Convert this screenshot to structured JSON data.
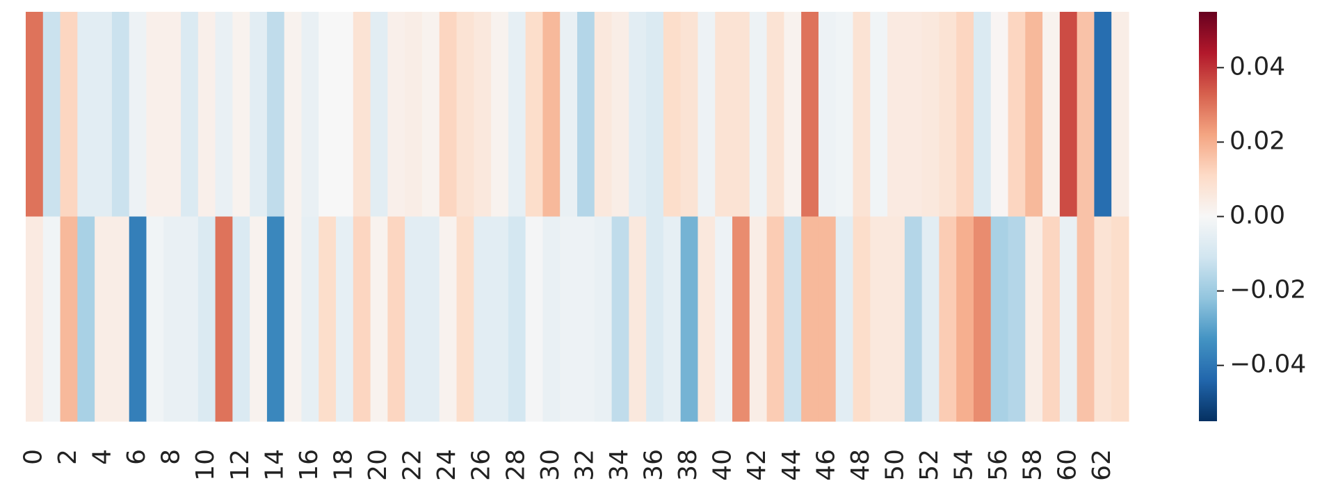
{
  "chart_data": {
    "type": "heatmap",
    "categories": [
      "0",
      null,
      "2",
      null,
      "4",
      null,
      "6",
      null,
      "8",
      null,
      "10",
      null,
      "12",
      null,
      "14",
      null,
      "16",
      null,
      "18",
      null,
      "20",
      null,
      "22",
      null,
      "24",
      null,
      "26",
      null,
      "28",
      null,
      "30",
      null,
      "32",
      null,
      "34",
      null,
      "36",
      null,
      "38",
      null,
      "40",
      null,
      "42",
      null,
      "44",
      null,
      "46",
      null,
      "48",
      null,
      "50",
      null,
      "52",
      null,
      "54",
      null,
      "56",
      null,
      "58",
      null,
      "60",
      null,
      "62",
      null
    ],
    "values": [
      [
        0.03,
        -0.012,
        0.012,
        -0.006,
        -0.006,
        -0.012,
        -0.003,
        0.003,
        0.003,
        -0.008,
        0.003,
        -0.004,
        0.002,
        -0.006,
        -0.014,
        0.002,
        -0.004,
        0.0,
        0.0,
        0.008,
        -0.006,
        0.003,
        0.004,
        0.002,
        0.012,
        0.008,
        0.006,
        0.002,
        -0.005,
        0.01,
        0.018,
        -0.004,
        -0.016,
        0.006,
        0.004,
        -0.006,
        -0.008,
        0.01,
        0.008,
        -0.003,
        0.008,
        0.008,
        -0.003,
        0.008,
        0.002,
        0.03,
        -0.003,
        -0.002,
        0.008,
        -0.002,
        0.005,
        0.005,
        0.006,
        0.008,
        0.012,
        -0.008,
        0.001,
        0.012,
        0.018,
        0.002,
        0.036,
        0.016,
        -0.042,
        0.004
      ],
      [
        0.005,
        -0.002,
        0.018,
        -0.018,
        0.004,
        0.004,
        -0.038,
        -0.002,
        -0.004,
        -0.004,
        -0.008,
        0.03,
        -0.008,
        0.002,
        -0.036,
        0.002,
        -0.005,
        0.01,
        -0.005,
        0.012,
        0.002,
        0.012,
        -0.006,
        -0.006,
        0.002,
        0.01,
        -0.006,
        -0.006,
        -0.01,
        -0.001,
        -0.004,
        -0.003,
        -0.003,
        -0.004,
        -0.014,
        0.006,
        -0.008,
        -0.005,
        -0.026,
        0.006,
        -0.003,
        0.026,
        0.004,
        0.014,
        -0.012,
        0.018,
        0.018,
        -0.006,
        0.01,
        0.006,
        0.006,
        -0.016,
        -0.006,
        0.014,
        0.02,
        0.026,
        -0.018,
        -0.016,
        0.004,
        0.012,
        -0.004,
        0.016,
        0.008,
        0.01
      ]
    ],
    "zlim": [
      -0.055,
      0.055
    ],
    "zticks": [
      {
        "value": -0.04,
        "label": "−0.04"
      },
      {
        "value": -0.02,
        "label": "−0.02"
      },
      {
        "value": 0,
        "label": "0.00"
      },
      0.02,
      0.04
    ],
    "colormap": [
      "#053061",
      "#2166ac",
      "#4393c3",
      "#92c5de",
      "#d1e5f0",
      "#f7f7f7",
      "#fddbc7",
      "#f4a582",
      "#d6604d",
      "#b2182b",
      "#67001f"
    ]
  }
}
